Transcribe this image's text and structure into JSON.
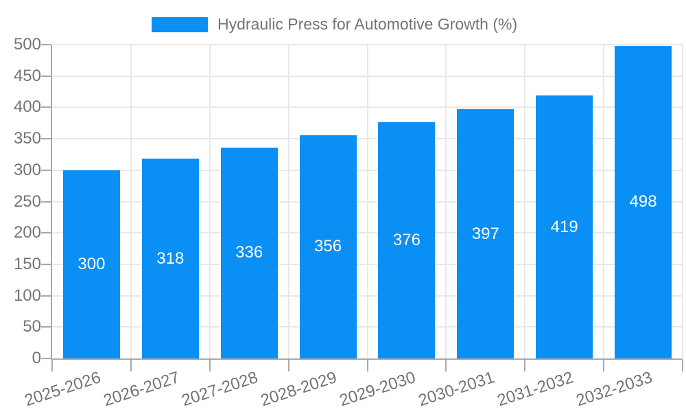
{
  "chart_data": {
    "type": "bar",
    "title": "Hydraulic Press for Automotive Growth (%)",
    "categories": [
      "2025-2026",
      "2026-2027",
      "2027-2028",
      "2028-2029",
      "2029-2030",
      "2030-2031",
      "2031-2032",
      "2032-2033"
    ],
    "values": [
      300,
      318,
      336,
      356,
      376,
      397,
      419,
      498
    ],
    "xlabel": "",
    "ylabel": "",
    "ylim": [
      0,
      500
    ],
    "yticks": [
      0,
      50,
      100,
      150,
      200,
      250,
      300,
      350,
      400,
      450,
      500
    ],
    "grid": true,
    "legend_position": "top",
    "bar_color": "#0a8ff5",
    "value_label_color": "#ffffff",
    "axis_color": "#a9a9a9",
    "grid_color": "#e8e8e8",
    "label_color": "#747474"
  }
}
